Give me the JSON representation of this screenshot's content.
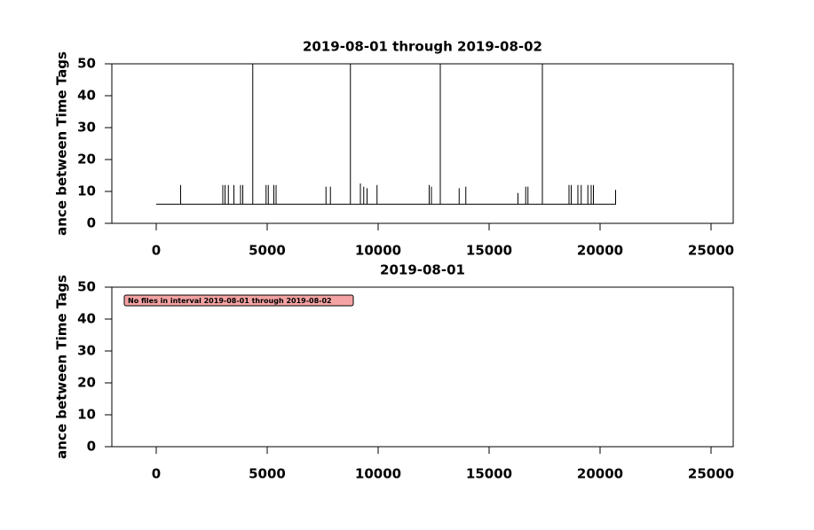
{
  "chart_data": [
    {
      "type": "line",
      "title": "2019-08-01 through 2019-08-02",
      "ylabel": "ance between Time Tags",
      "xlim": [
        -2000,
        26000
      ],
      "ylim": [
        0,
        50
      ],
      "xticks": [
        0,
        5000,
        10000,
        15000,
        20000,
        25000
      ],
      "yticks": [
        0,
        10,
        20,
        30,
        40,
        50
      ],
      "x": [
        0,
        1100,
        1100,
        1100,
        3000,
        3000,
        3000,
        3100,
        3100,
        3100,
        3250,
        3250,
        3250,
        3500,
        3500,
        3500,
        3800,
        3800,
        3800,
        3900,
        3900,
        3900,
        4350,
        4350,
        4350,
        4950,
        4950,
        4950,
        5050,
        5050,
        5050,
        5300,
        5300,
        5300,
        5400,
        5400,
        5400,
        7650,
        7650,
        7650,
        7850,
        7850,
        7850,
        8750,
        8750,
        8750,
        9200,
        9200,
        9200,
        9350,
        9350,
        9350,
        9500,
        9500,
        9500,
        9950,
        9950,
        9950,
        12300,
        12300,
        12300,
        12400,
        12400,
        12400,
        12800,
        12800,
        12800,
        13650,
        13650,
        13650,
        13950,
        13950,
        13950,
        16300,
        16300,
        16300,
        16650,
        16650,
        16650,
        16750,
        16750,
        16750,
        17400,
        17400,
        17400,
        18600,
        18600,
        18600,
        18700,
        18700,
        18700,
        19000,
        19000,
        19000,
        19150,
        19150,
        19150,
        19450,
        19450,
        19450,
        19600,
        19600,
        19600,
        19700,
        19700,
        19700,
        20700,
        20700
      ],
      "series": [
        {
          "color": "#000000",
          "values": [
            6,
            6,
            12,
            6,
            6,
            12,
            6,
            6,
            12,
            6,
            6,
            12,
            6,
            6,
            12,
            6,
            6,
            12,
            6,
            6,
            12,
            6,
            6,
            50,
            6,
            6,
            12,
            6,
            6,
            12,
            6,
            6,
            12,
            6,
            6,
            12,
            6,
            6,
            11.5,
            6,
            6,
            11.5,
            6,
            6,
            50,
            6,
            6,
            12.5,
            6,
            6,
            11.5,
            6,
            6,
            11,
            6,
            6,
            12,
            6,
            6,
            12,
            6,
            6,
            11.5,
            6,
            6,
            50,
            6,
            6,
            11,
            6,
            6,
            11.5,
            6,
            6,
            9.5,
            6,
            6,
            11.5,
            6,
            6,
            11.5,
            6,
            6,
            50,
            6,
            6,
            12,
            6,
            6,
            12,
            6,
            6,
            12,
            6,
            6,
            12,
            6,
            6,
            12,
            6,
            6,
            12,
            6,
            6,
            12,
            6,
            6,
            10.5
          ]
        }
      ]
    },
    {
      "type": "line",
      "title": "2019-08-01",
      "ylabel": "ance between Time Tags",
      "xlim": [
        -2000,
        26000
      ],
      "ylim": [
        0,
        50
      ],
      "xticks": [
        0,
        5000,
        10000,
        15000,
        20000,
        25000
      ],
      "yticks": [
        0,
        10,
        20,
        30,
        40,
        50
      ],
      "annotation": "No files in interval 2019-08-01 through 2019-08-02",
      "series": []
    }
  ]
}
